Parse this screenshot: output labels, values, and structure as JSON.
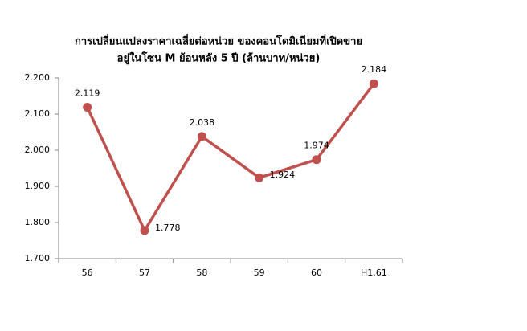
{
  "chart_data": {
    "type": "line",
    "title": [
      "การเปลี่ยนแปลงราคาเฉลี่ยต่อหน่วย ของคอนโดมิเนียมที่เปิดขาย",
      "อยู่ในโซน M ย้อนหลัง 5 ปี (ล้านบาท/หน่วย)"
    ],
    "categories": [
      "56",
      "57",
      "58",
      "59",
      "60",
      "H1.61"
    ],
    "series": [
      {
        "color": "#c0504d",
        "values": [
          2.119,
          1.778,
          2.038,
          1.924,
          1.974,
          2.184
        ]
      }
    ],
    "ylim": [
      1.7,
      2.2
    ],
    "yticks": [
      {
        "value": 1.7,
        "label": "1.700"
      },
      {
        "value": 1.8,
        "label": "1.800"
      },
      {
        "value": 1.9,
        "label": "1.900"
      },
      {
        "value": 2.0,
        "label": "2.000"
      },
      {
        "value": 2.1,
        "label": "2.100"
      },
      {
        "value": 2.2,
        "label": "2.200"
      }
    ],
    "grid": false
  }
}
